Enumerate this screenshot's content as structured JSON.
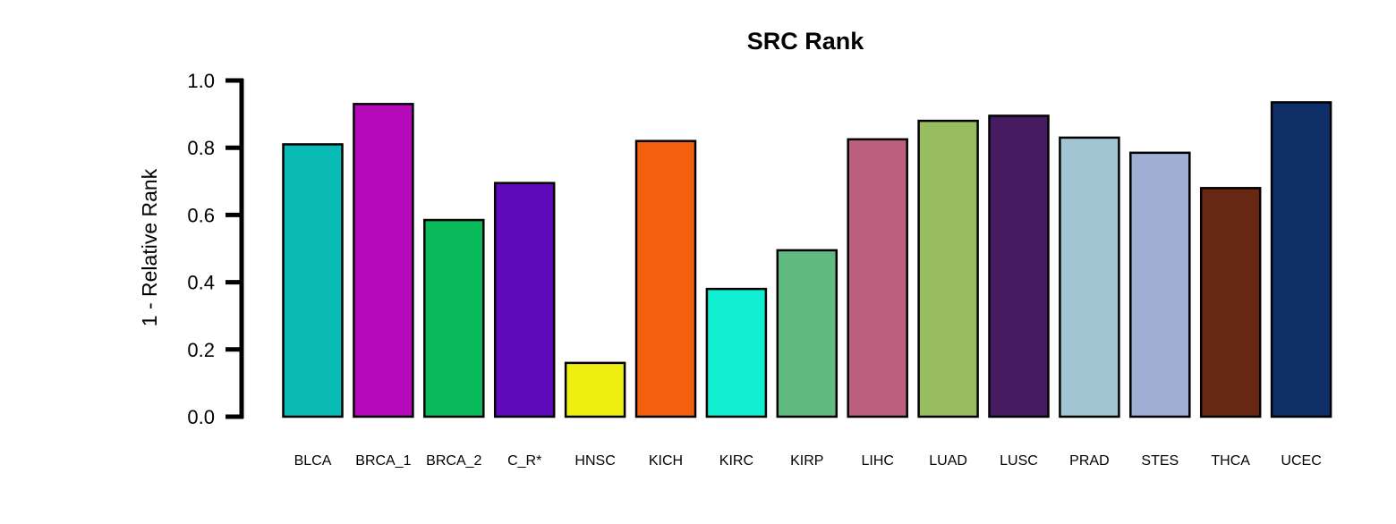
{
  "chart_data": {
    "type": "bar",
    "title": "SRC Rank",
    "xlabel": "",
    "ylabel": "1 - Relative Rank",
    "ylim": [
      0,
      1.0
    ],
    "yticks": [
      "0.0",
      "0.2",
      "0.4",
      "0.6",
      "0.8",
      "1.0"
    ],
    "ytick_values": [
      0,
      0.2,
      0.4,
      0.6,
      0.8,
      1.0
    ],
    "grid": false,
    "categories": [
      "BLCA",
      "BRCA_1",
      "BRCA_2",
      "C_R*",
      "HNSC",
      "KICH",
      "KIRC",
      "KIRP",
      "LIHC",
      "LUAD",
      "LUSC",
      "PRAD",
      "STES",
      "THCA",
      "UCEC"
    ],
    "values": [
      0.81,
      0.93,
      0.585,
      0.695,
      0.16,
      0.82,
      0.38,
      0.495,
      0.825,
      0.88,
      0.895,
      0.83,
      0.785,
      0.68,
      0.935
    ],
    "colors": [
      "#0ABAB5",
      "#B60ABA",
      "#0ABA5A",
      "#5E0ABA",
      "#EEEE11",
      "#F26010",
      "#10EED2",
      "#61BA80",
      "#BD6080",
      "#98BD61",
      "#471B61",
      "#A0C5D3",
      "#9FAED3",
      "#682712",
      "#0E2E67"
    ]
  }
}
